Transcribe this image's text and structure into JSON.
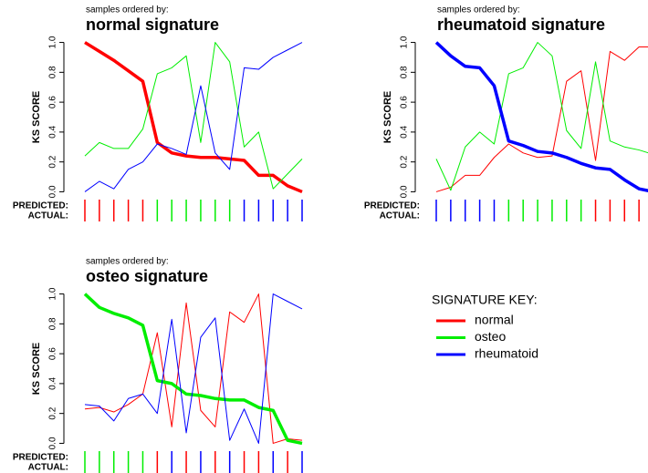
{
  "signature_key": {
    "title": "SIGNATURE KEY:",
    "entries": [
      {
        "name": "normal",
        "color": "#ff0000"
      },
      {
        "name": "osteo",
        "color": "#00ee00"
      },
      {
        "name": "rheumatoid",
        "color": "#0000ff"
      }
    ]
  },
  "chart_data": [
    {
      "type": "line",
      "subtitle": "samples ordered by:",
      "title": "normal signature",
      "title_color": "#ff0000",
      "ylabel": "KS SCORE",
      "ylim": [
        -0.04,
        1.04
      ],
      "yticks": [
        {
          "value": 0,
          "label": "0.0"
        },
        {
          "value": 0.2,
          "label": "0.2"
        },
        {
          "value": 0.4,
          "label": "0.4"
        },
        {
          "value": 0.6,
          "label": "0.6"
        },
        {
          "value": 0.8,
          "label": "0.8"
        },
        {
          "value": 1,
          "label": "1.0"
        }
      ],
      "series": [
        {
          "name": "normal",
          "color": "#ff0000",
          "line_width": 3.5,
          "values": [
            1.0,
            0.94,
            0.88,
            0.81,
            0.74,
            0.33,
            0.26,
            0.24,
            0.23,
            0.23,
            0.22,
            0.21,
            0.11,
            0.11,
            0.04,
            0.0
          ]
        },
        {
          "name": "osteo",
          "color": "#00ee00",
          "line_width": 1,
          "values": [
            0.24,
            0.33,
            0.29,
            0.29,
            0.42,
            0.79,
            0.83,
            0.91,
            0.33,
            1.0,
            0.87,
            0.3,
            0.4,
            0.02,
            0.12,
            0.22
          ]
        },
        {
          "name": "rheumatoid",
          "color": "#0000ff",
          "line_width": 1,
          "values": [
            0.0,
            0.07,
            0.02,
            0.15,
            0.2,
            0.32,
            0.29,
            0.25,
            0.71,
            0.26,
            0.15,
            0.83,
            0.82,
            0.9,
            0.95,
            1.0
          ]
        }
      ],
      "predicted_label": "PREDICTED:",
      "actual_label": "ACTUAL:",
      "predicted": [
        "normal",
        "normal",
        "normal",
        "normal",
        "normal",
        "osteo",
        "osteo",
        "osteo",
        "osteo",
        "osteo",
        "osteo",
        "rheumatoid",
        "rheumatoid",
        "rheumatoid",
        "rheumatoid",
        "rheumatoid"
      ],
      "actual": [
        "normal",
        "normal",
        "normal",
        "normal",
        "normal",
        "osteo",
        "osteo",
        "osteo",
        "osteo",
        "osteo",
        "osteo",
        "rheumatoid",
        "rheumatoid",
        "rheumatoid",
        "rheumatoid",
        "rheumatoid"
      ]
    },
    {
      "type": "line",
      "subtitle": "samples ordered by:",
      "title": "rheumatoid signature",
      "title_color": "#0000ff",
      "ylabel": "KS SCORE",
      "ylim": [
        -0.04,
        1.04
      ],
      "yticks": [
        {
          "value": 0,
          "label": "0.0"
        },
        {
          "value": 0.2,
          "label": "0.2"
        },
        {
          "value": 0.4,
          "label": "0.4"
        },
        {
          "value": 0.6,
          "label": "0.6"
        },
        {
          "value": 0.8,
          "label": "0.8"
        },
        {
          "value": 1,
          "label": "1.0"
        }
      ],
      "series": [
        {
          "name": "normal",
          "color": "#ff0000",
          "line_width": 1,
          "values": [
            0.0,
            0.03,
            0.11,
            0.11,
            0.23,
            0.32,
            0.26,
            0.23,
            0.24,
            0.74,
            0.81,
            0.21,
            0.94,
            0.88,
            0.97,
            0.97
          ]
        },
        {
          "name": "osteo",
          "color": "#00ee00",
          "line_width": 1,
          "values": [
            0.22,
            0.01,
            0.3,
            0.4,
            0.32,
            0.79,
            0.83,
            1.0,
            0.91,
            0.41,
            0.29,
            0.87,
            0.34,
            0.3,
            0.28,
            0.25
          ]
        },
        {
          "name": "rheumatoid",
          "color": "#0000ff",
          "line_width": 3.5,
          "values": [
            1.0,
            0.91,
            0.84,
            0.83,
            0.71,
            0.34,
            0.31,
            0.27,
            0.26,
            0.23,
            0.19,
            0.16,
            0.15,
            0.08,
            0.02,
            0.0
          ]
        }
      ],
      "predicted_label": "PREDICTED:",
      "actual_label": "ACTUAL:",
      "predicted": [
        "rheumatoid",
        "rheumatoid",
        "rheumatoid",
        "rheumatoid",
        "rheumatoid",
        "osteo",
        "osteo",
        "osteo",
        "osteo",
        "osteo",
        "osteo",
        "normal",
        "normal",
        "normal",
        "normal",
        "normal"
      ],
      "actual": [
        "rheumatoid",
        "rheumatoid",
        "rheumatoid",
        "rheumatoid",
        "rheumatoid",
        "osteo",
        "osteo",
        "osteo",
        "osteo",
        "osteo",
        "osteo",
        "normal",
        "normal",
        "normal",
        "normal",
        "normal"
      ]
    },
    {
      "type": "line",
      "subtitle": "samples ordered by:",
      "title": "osteo signature",
      "title_color": "#00ee00",
      "ylabel": "KS SCORE",
      "ylim": [
        -0.04,
        1.04
      ],
      "yticks": [
        {
          "value": 0,
          "label": "0.0"
        },
        {
          "value": 0.2,
          "label": "0.2"
        },
        {
          "value": 0.4,
          "label": "0.4"
        },
        {
          "value": 0.6,
          "label": "0.6"
        },
        {
          "value": 0.8,
          "label": "0.8"
        },
        {
          "value": 1,
          "label": "1.0"
        }
      ],
      "series": [
        {
          "name": "normal",
          "color": "#ff0000",
          "line_width": 1,
          "values": [
            0.23,
            0.24,
            0.21,
            0.26,
            0.33,
            0.74,
            0.11,
            0.94,
            0.22,
            0.11,
            0.88,
            0.81,
            1.0,
            0.0,
            0.03,
            0.02
          ]
        },
        {
          "name": "osteo",
          "color": "#00ee00",
          "line_width": 3.5,
          "values": [
            1.0,
            0.91,
            0.87,
            0.84,
            0.79,
            0.42,
            0.4,
            0.33,
            0.32,
            0.3,
            0.29,
            0.29,
            0.24,
            0.22,
            0.02,
            0.0
          ]
        },
        {
          "name": "rheumatoid",
          "color": "#0000ff",
          "line_width": 1,
          "values": [
            0.26,
            0.25,
            0.15,
            0.3,
            0.33,
            0.2,
            0.83,
            0.07,
            0.71,
            0.84,
            0.02,
            0.23,
            0.0,
            1.0,
            0.95,
            0.9
          ]
        }
      ],
      "predicted_label": "PREDICTED:",
      "actual_label": "ACTUAL:",
      "predicted": [
        "osteo",
        "osteo",
        "osteo",
        "osteo",
        "osteo",
        "normal",
        "rheumatoid",
        "normal",
        "rheumatoid",
        "normal",
        "rheumatoid",
        "normal",
        "normal",
        "rheumatoid",
        "normal",
        "rheumatoid"
      ],
      "actual": [
        "osteo",
        "osteo",
        "osteo",
        "osteo",
        "osteo",
        "normal",
        "rheumatoid",
        "normal",
        "rheumatoid",
        "normal",
        "rheumatoid",
        "normal",
        "normal",
        "rheumatoid",
        "normal",
        "rheumatoid"
      ]
    }
  ]
}
